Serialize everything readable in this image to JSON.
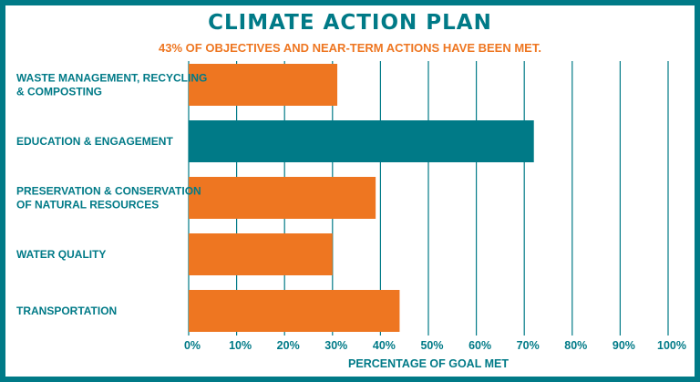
{
  "chart_data": {
    "type": "bar",
    "orientation": "horizontal",
    "title": "CLIMATE ACTION PLAN",
    "subtitle": "43% OF OBJECTIVES AND NEAR-TERM ACTIONS HAVE BEEN MET.",
    "xlabel": "PERCENTAGE OF GOAL MET",
    "ylabel": "",
    "xlim": [
      0,
      100
    ],
    "grid": true,
    "categories": [
      [
        "WASTE MANAGEMENT, RECYCLING",
        "& COMPOSTING"
      ],
      [
        "EDUCATION & ENGAGEMENT"
      ],
      [
        "PRESERVATION & CONSERVATION",
        "OF NATURAL RESOURCES"
      ],
      [
        "WATER QUALITY"
      ],
      [
        "TRANSPORTATION"
      ]
    ],
    "values": [
      31,
      72,
      39,
      30,
      44
    ],
    "bar_colors": [
      "#ee7621",
      "#007a87",
      "#ee7621",
      "#ee7621",
      "#ee7621"
    ],
    "tick_labels": [
      "0%",
      "10%",
      "20%",
      "30%",
      "40%",
      "50%",
      "60%",
      "70%",
      "80%",
      "90%",
      "100%"
    ]
  },
  "colors": {
    "accent": "#007a87",
    "highlight": "#ee7621"
  }
}
